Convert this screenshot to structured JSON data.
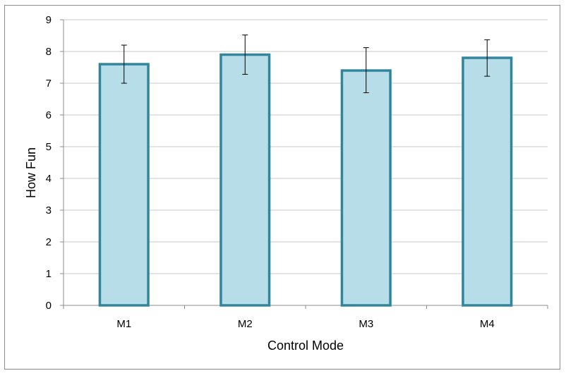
{
  "chart_data": {
    "type": "bar",
    "title": "",
    "xlabel": "Control Mode",
    "ylabel": "How Fun",
    "categories": [
      "M1",
      "M2",
      "M3",
      "M4"
    ],
    "values": [
      7.6,
      7.9,
      7.4,
      7.8
    ],
    "error_bars": [
      {
        "low": 7.0,
        "high": 8.2
      },
      {
        "low": 7.28,
        "high": 8.52
      },
      {
        "low": 6.7,
        "high": 8.12
      },
      {
        "low": 7.22,
        "high": 8.37
      }
    ],
    "ylim": [
      0,
      9
    ],
    "yticks": [
      0,
      1,
      2,
      3,
      4,
      5,
      6,
      7,
      8,
      9
    ],
    "grid": true,
    "legend": "none",
    "colors": {
      "bar_fill": "#b7dde8",
      "bar_stroke": "#31859c",
      "grid": "#c8c8c8",
      "axis": "#8c8c8c",
      "error_bar": "#000000"
    }
  }
}
